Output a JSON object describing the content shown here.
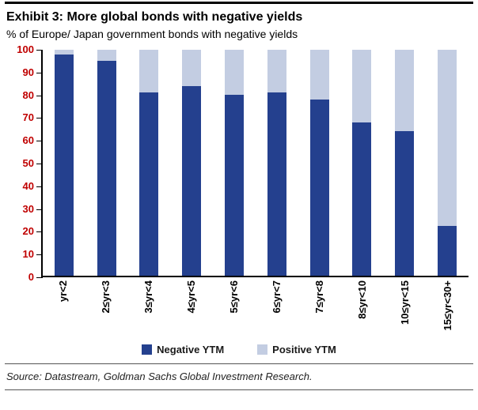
{
  "footer": {
    "source": "Source: Datastream, Goldman Sachs Global Investment Research."
  },
  "colors": {
    "negative_ytm": "#24408E",
    "positive_ytm": "#C3CDE2",
    "y_axis_labels": "#C00000",
    "axis_line": "#000000"
  },
  "chart_data": {
    "type": "bar",
    "stacked": true,
    "title": "Exhibit 3: More global bonds with negative yields",
    "subtitle": "% of Europe/ Japan government bonds with negative yields",
    "categories": [
      "yr<2",
      "2≤yr<3",
      "3≤yr<4",
      "4≤yr<5",
      "5≤yr<6",
      "6≤yr<7",
      "7≤yr<8",
      "8≤yr<10",
      "10≤yr<15",
      "15≤yr<30+"
    ],
    "series": [
      {
        "name": "Negative YTM",
        "color": "#24408E",
        "values": [
          98,
          95,
          81,
          84,
          80,
          81,
          78,
          68,
          64,
          22
        ]
      },
      {
        "name": "Positive YTM",
        "color": "#C3CDE2",
        "values": [
          2,
          5,
          19,
          16,
          20,
          19,
          22,
          32,
          36,
          78
        ]
      }
    ],
    "xlabel": "",
    "ylabel": "",
    "ylim": [
      0,
      100
    ],
    "yticks": [
      0,
      10,
      20,
      30,
      40,
      50,
      60,
      70,
      80,
      90,
      100
    ],
    "grid": false,
    "legend_position": "bottom"
  }
}
